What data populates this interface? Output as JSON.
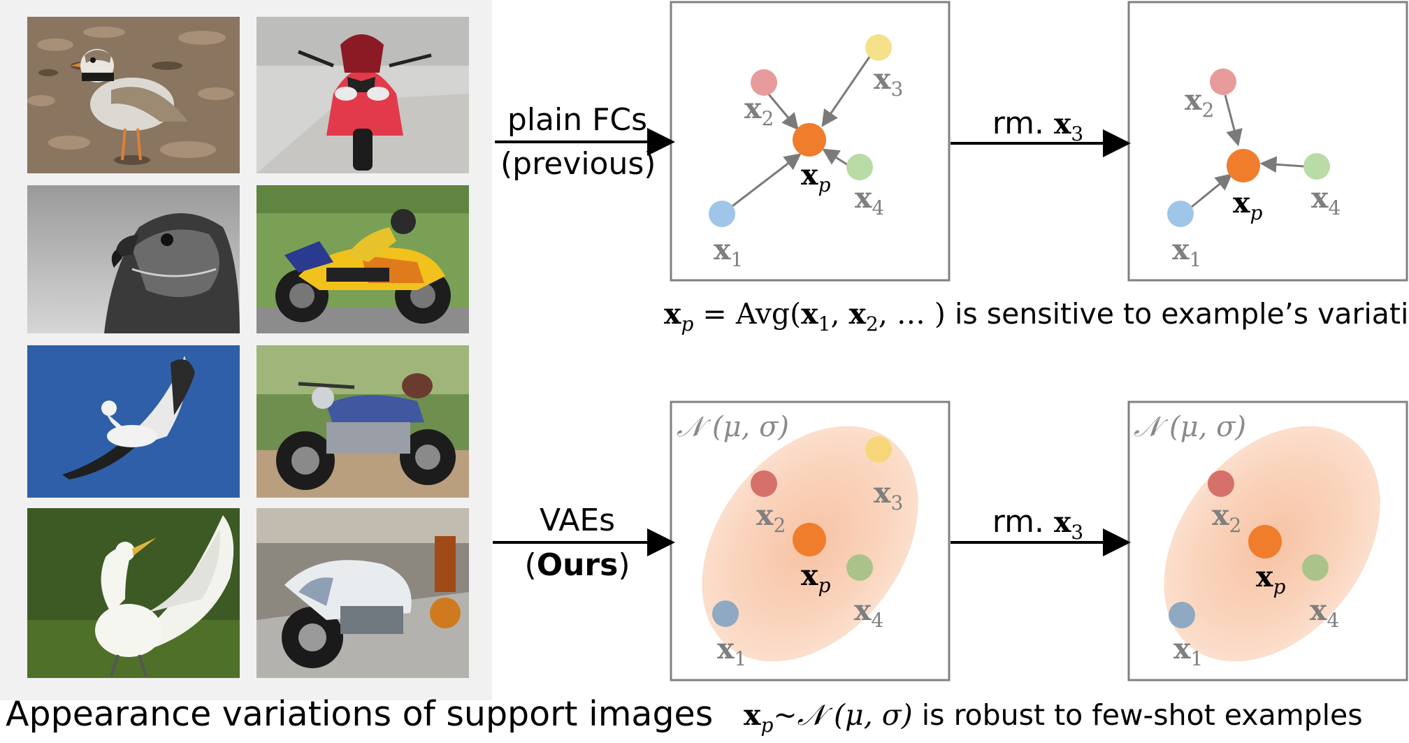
{
  "left_panel": {
    "caption": "Appearance variations of support images",
    "images": [
      {
        "name": "plover-photo",
        "subject": "bird"
      },
      {
        "name": "red-sportbike-photo",
        "subject": "motorbike"
      },
      {
        "name": "hawk-bw-photo",
        "subject": "bird"
      },
      {
        "name": "yellow-racing-bike-photo",
        "subject": "motorbike"
      },
      {
        "name": "gull-flying-photo",
        "subject": "bird"
      },
      {
        "name": "blue-classic-bike-photo",
        "subject": "motorbike"
      },
      {
        "name": "egret-photo",
        "subject": "bird"
      },
      {
        "name": "white-bike-photo",
        "subject": "motorbike"
      }
    ]
  },
  "top_row": {
    "method_line1": "plain FCs",
    "method_line2": "(previous)",
    "rm_text": "rm. ",
    "rm_var": "x",
    "rm_sub": "3",
    "caption_sans": "is sensitive to example’s variations",
    "caption_math": {
      "lhs": "x",
      "lhs_sub": "p",
      "eq": " = ",
      "func": "Avg(",
      "a1": "x",
      "a1_sub": "1",
      "comma1": ", ",
      "a2": "x",
      "a2_sub": "2",
      "tail": ", … ) "
    }
  },
  "bottom_row": {
    "method_line1": "VAEs",
    "method_open": "(",
    "method_bold": "Ours",
    "method_close": ")",
    "rm_text": "rm. ",
    "rm_var": "x",
    "rm_sub": "3",
    "dist_label": "𝒩 (μ, σ)",
    "caption_math": {
      "lhs": "x",
      "lhs_sub": "p",
      "tilde": "~𝒩 (μ, σ) "
    },
    "caption_sans": "is robust to few-shot examples"
  },
  "points": {
    "x1": {
      "base": "x",
      "sub": "1",
      "color": "#9fc5e8"
    },
    "x2": {
      "base": "x",
      "sub": "2",
      "color": "#e89b9b"
    },
    "x3": {
      "base": "x",
      "sub": "3",
      "color": "#f6e08a"
    },
    "x4": {
      "base": "x",
      "sub": "4",
      "color": "#b9dba6"
    },
    "xp": {
      "base": "x",
      "sub": "p",
      "color": "#ef7d2c"
    }
  },
  "colors": {
    "panel_border": "#808080",
    "arrow": "#7a7a7a",
    "label_gray": "#7f7f7f",
    "gaussian": "#f8c7a8",
    "dark_x1": "#8ea9c1",
    "dark_x2": "#d6706a",
    "dark_x3": "#f7d67a",
    "dark_x4": "#a9c38a"
  }
}
